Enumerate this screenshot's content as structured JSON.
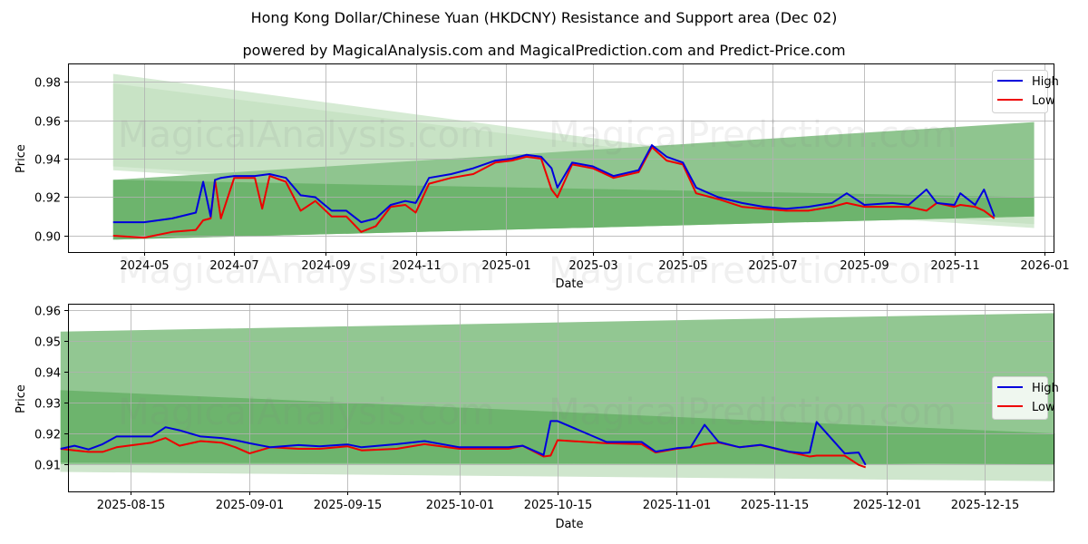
{
  "header": {
    "title": "Hong Kong Dollar/Chinese Yuan (HKDCNY) Resistance and Support area (Dec 02)",
    "subtitle": "powered by MagicalAnalysis.com and MagicalPrediction.com and Predict-Price.com"
  },
  "watermarks": [
    "MagicalAnalysis.com",
    "MagicalPrediction.com"
  ],
  "colors": {
    "high": "#0000dd",
    "low": "#ee0000",
    "band_dark": "#5aa85a",
    "band_light": "#a8d5a8"
  },
  "legend": {
    "high_label": "High",
    "low_label": "Low"
  },
  "chart_data": [
    {
      "type": "line",
      "title": "Hong Kong Dollar/Chinese Yuan (HKDCNY) Resistance and Support area (Dec 02)",
      "xlabel": "Date",
      "ylabel": "Price",
      "ylim": [
        0.892,
        0.989
      ],
      "grid": true,
      "legend_position": "upper right",
      "x_ticks": [
        "2024-05",
        "2024-07",
        "2024-09",
        "2024-11",
        "2025-01",
        "2025-03",
        "2025-05",
        "2025-07",
        "2025-09",
        "2025-11",
        "2026-01"
      ],
      "y_ticks": [
        "0.90",
        "0.92",
        "0.94",
        "0.96",
        "0.98"
      ],
      "bands": [
        {
          "name": "resistance_upper_light",
          "x": [
            "2024-04-10",
            "2025-12-25"
          ],
          "top": [
            0.984,
            0.92
          ],
          "bottom": [
            0.934,
            0.904
          ]
        },
        {
          "name": "resistance_light",
          "x": [
            "2024-04-10",
            "2025-12-25"
          ],
          "top": [
            0.979,
            0.918
          ],
          "bottom": [
            0.936,
            0.906
          ]
        },
        {
          "name": "support_mid",
          "x": [
            "2024-04-10",
            "2025-12-25"
          ],
          "top": [
            0.929,
            0.959
          ],
          "bottom": [
            0.898,
            0.91
          ]
        },
        {
          "name": "support_dark",
          "x": [
            "2024-04-10",
            "2025-12-25"
          ],
          "top": [
            0.929,
            0.92
          ],
          "bottom": [
            0.898,
            0.91
          ]
        }
      ],
      "series": [
        {
          "name": "High",
          "x": [
            "2024-04-10",
            "2024-05-01",
            "2024-05-20",
            "2024-06-05",
            "2024-06-10",
            "2024-06-15",
            "2024-06-18",
            "2024-06-22",
            "2024-07-01",
            "2024-07-15",
            "2024-07-25",
            "2024-08-05",
            "2024-08-15",
            "2024-08-25",
            "2024-09-05",
            "2024-09-15",
            "2024-09-25",
            "2024-10-05",
            "2024-10-15",
            "2024-10-25",
            "2024-11-01",
            "2024-11-10",
            "2024-11-25",
            "2024-12-10",
            "2024-12-25",
            "2025-01-05",
            "2025-01-15",
            "2025-01-25",
            "2025-02-01",
            "2025-02-05",
            "2025-02-15",
            "2025-03-01",
            "2025-03-15",
            "2025-04-01",
            "2025-04-10",
            "2025-04-20",
            "2025-05-01",
            "2025-05-10",
            "2025-05-25",
            "2025-06-10",
            "2025-06-25",
            "2025-07-10",
            "2025-07-25",
            "2025-08-10",
            "2025-08-20",
            "2025-09-01",
            "2025-09-20",
            "2025-10-01",
            "2025-10-13",
            "2025-10-20",
            "2025-11-01",
            "2025-11-05",
            "2025-11-15",
            "2025-11-21",
            "2025-11-28"
          ],
          "values": [
            0.907,
            0.907,
            0.909,
            0.912,
            0.928,
            0.91,
            0.929,
            0.93,
            0.931,
            0.931,
            0.932,
            0.93,
            0.921,
            0.92,
            0.913,
            0.913,
            0.907,
            0.909,
            0.916,
            0.918,
            0.917,
            0.93,
            0.932,
            0.935,
            0.939,
            0.94,
            0.942,
            0.941,
            0.935,
            0.925,
            0.938,
            0.936,
            0.931,
            0.934,
            0.947,
            0.941,
            0.938,
            0.925,
            0.92,
            0.917,
            0.915,
            0.914,
            0.915,
            0.917,
            0.922,
            0.916,
            0.917,
            0.916,
            0.924,
            0.917,
            0.916,
            0.922,
            0.916,
            0.924,
            0.91
          ]
        },
        {
          "name": "Low",
          "x": [
            "2024-04-10",
            "2024-05-01",
            "2024-05-20",
            "2024-06-05",
            "2024-06-10",
            "2024-06-15",
            "2024-06-18",
            "2024-06-22",
            "2024-07-01",
            "2024-07-15",
            "2024-07-20",
            "2024-07-25",
            "2024-08-05",
            "2024-08-15",
            "2024-08-25",
            "2024-09-05",
            "2024-09-15",
            "2024-09-25",
            "2024-10-05",
            "2024-10-15",
            "2024-10-25",
            "2024-11-01",
            "2024-11-10",
            "2024-11-25",
            "2024-12-10",
            "2024-12-25",
            "2025-01-05",
            "2025-01-15",
            "2025-01-25",
            "2025-02-01",
            "2025-02-05",
            "2025-02-15",
            "2025-03-01",
            "2025-03-15",
            "2025-04-01",
            "2025-04-10",
            "2025-04-20",
            "2025-05-01",
            "2025-05-10",
            "2025-05-25",
            "2025-06-10",
            "2025-06-25",
            "2025-07-10",
            "2025-07-25",
            "2025-08-10",
            "2025-08-20",
            "2025-09-01",
            "2025-09-20",
            "2025-10-01",
            "2025-10-13",
            "2025-10-20",
            "2025-11-01",
            "2025-11-05",
            "2025-11-15",
            "2025-11-21",
            "2025-11-28"
          ],
          "values": [
            0.9,
            0.899,
            0.902,
            0.903,
            0.908,
            0.909,
            0.929,
            0.909,
            0.93,
            0.93,
            0.914,
            0.931,
            0.928,
            0.913,
            0.918,
            0.91,
            0.91,
            0.902,
            0.905,
            0.915,
            0.916,
            0.912,
            0.927,
            0.93,
            0.932,
            0.938,
            0.939,
            0.941,
            0.94,
            0.924,
            0.92,
            0.937,
            0.935,
            0.93,
            0.933,
            0.946,
            0.939,
            0.937,
            0.922,
            0.919,
            0.915,
            0.914,
            0.913,
            0.913,
            0.915,
            0.917,
            0.915,
            0.915,
            0.915,
            0.913,
            0.917,
            0.915,
            0.916,
            0.915,
            0.913,
            0.909
          ]
        }
      ]
    },
    {
      "type": "line",
      "title": "",
      "xlabel": "Date",
      "ylabel": "Price",
      "ylim": [
        0.9005,
        0.9625
      ],
      "grid": true,
      "legend_position": "center right",
      "x_ticks": [
        "2025-08-15",
        "2025-09-01",
        "2025-09-15",
        "2025-10-01",
        "2025-10-15",
        "2025-11-01",
        "2025-11-15",
        "2025-12-01",
        "2025-12-15"
      ],
      "y_ticks": [
        "0.91",
        "0.92",
        "0.93",
        "0.94",
        "0.95",
        "0.96"
      ],
      "bands": [
        {
          "name": "upper_mid",
          "x": [
            "2025-08-05",
            "2025-12-25"
          ],
          "top": [
            0.953,
            0.959
          ],
          "bottom": [
            0.9075,
            0.9105
          ]
        },
        {
          "name": "lower_dark",
          "x": [
            "2025-08-05",
            "2025-12-25"
          ],
          "top": [
            0.934,
            0.92
          ],
          "bottom": [
            0.9105,
            0.91
          ]
        },
        {
          "name": "lower_light",
          "x": [
            "2025-08-05",
            "2025-12-25"
          ],
          "top": [
            0.91,
            0.91
          ],
          "bottom": [
            0.9075,
            0.9045
          ]
        }
      ],
      "series": [
        {
          "name": "High",
          "x": [
            "2025-08-05",
            "2025-08-07",
            "2025-08-09",
            "2025-08-11",
            "2025-08-13",
            "2025-08-18",
            "2025-08-20",
            "2025-08-22",
            "2025-08-25",
            "2025-08-28",
            "2025-08-30",
            "2025-09-01",
            "2025-09-04",
            "2025-09-08",
            "2025-09-11",
            "2025-09-15",
            "2025-09-17",
            "2025-09-22",
            "2025-09-26",
            "2025-10-01",
            "2025-10-08",
            "2025-10-10",
            "2025-10-13",
            "2025-10-14",
            "2025-10-15",
            "2025-10-22",
            "2025-10-27",
            "2025-10-29",
            "2025-11-01",
            "2025-11-03",
            "2025-11-05",
            "2025-11-07",
            "2025-11-10",
            "2025-11-13",
            "2025-11-17",
            "2025-11-19",
            "2025-11-20",
            "2025-11-21",
            "2025-11-25",
            "2025-11-27",
            "2025-11-28"
          ],
          "values": [
            0.915,
            0.916,
            0.9148,
            0.9165,
            0.919,
            0.919,
            0.922,
            0.921,
            0.919,
            0.9185,
            0.9178,
            0.9168,
            0.9155,
            0.9162,
            0.9158,
            0.9164,
            0.9155,
            0.9165,
            0.9175,
            0.9155,
            0.9155,
            0.916,
            0.913,
            0.924,
            0.924,
            0.9172,
            0.9172,
            0.9141,
            0.9152,
            0.9155,
            0.9228,
            0.9172,
            0.9155,
            0.9163,
            0.9141,
            0.9136,
            0.9138,
            0.9237,
            0.9135,
            0.9138,
            0.9098
          ]
        },
        {
          "name": "Low",
          "x": [
            "2025-08-05",
            "2025-08-07",
            "2025-08-09",
            "2025-08-11",
            "2025-08-13",
            "2025-08-18",
            "2025-08-20",
            "2025-08-22",
            "2025-08-25",
            "2025-08-28",
            "2025-08-30",
            "2025-09-01",
            "2025-09-04",
            "2025-09-08",
            "2025-09-11",
            "2025-09-15",
            "2025-09-17",
            "2025-09-22",
            "2025-09-26",
            "2025-10-01",
            "2025-10-08",
            "2025-10-10",
            "2025-10-13",
            "2025-10-14",
            "2025-10-15",
            "2025-10-22",
            "2025-10-27",
            "2025-10-29",
            "2025-11-01",
            "2025-11-03",
            "2025-11-05",
            "2025-11-07",
            "2025-11-10",
            "2025-11-13",
            "2025-11-17",
            "2025-11-19",
            "2025-11-20",
            "2025-11-21",
            "2025-11-25",
            "2025-11-27",
            "2025-11-28"
          ],
          "values": [
            0.915,
            0.9145,
            0.914,
            0.914,
            0.9155,
            0.917,
            0.9185,
            0.916,
            0.9175,
            0.917,
            0.9155,
            0.9135,
            0.9155,
            0.915,
            0.915,
            0.9158,
            0.9145,
            0.915,
            0.9165,
            0.915,
            0.915,
            0.916,
            0.9125,
            0.9128,
            0.9178,
            0.9168,
            0.9165,
            0.9138,
            0.915,
            0.9155,
            0.9165,
            0.917,
            0.9155,
            0.9162,
            0.914,
            0.913,
            0.9125,
            0.9128,
            0.9128,
            0.9098,
            0.909
          ]
        }
      ]
    }
  ]
}
